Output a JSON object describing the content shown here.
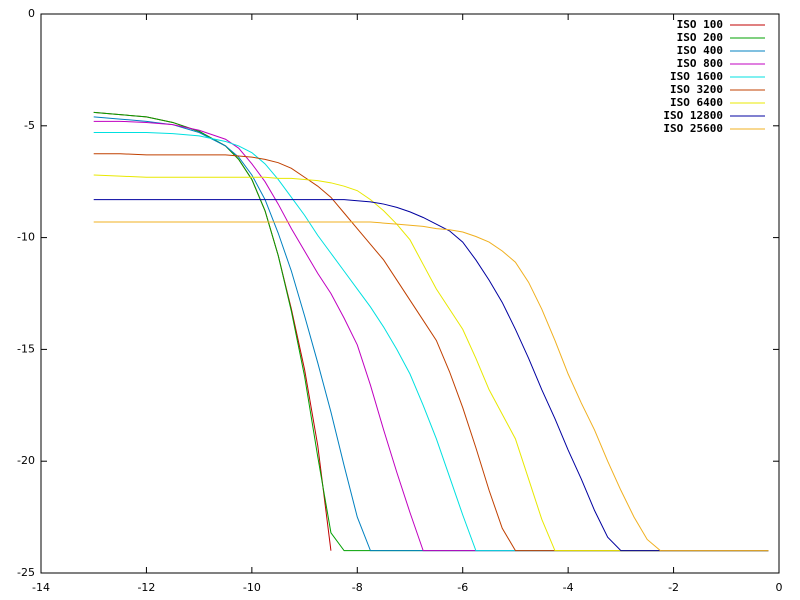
{
  "chart_data": {
    "type": "line",
    "x": [
      -13,
      -12.5,
      -12,
      -11.5,
      -11,
      -10.5,
      -10.25,
      -10,
      -9.75,
      -9.5,
      -9.25,
      -9,
      -8.75,
      -8.5,
      -8.25,
      -8,
      -7.75,
      -7.5,
      -7.25,
      -7,
      -6.75,
      -6.5,
      -6.25,
      -6,
      -5.75,
      -5.5,
      -5.25,
      -5,
      -4.75,
      -4.5,
      -4.25,
      -4,
      -3.75,
      -3.5,
      -3.25,
      -3,
      -2.75,
      -2.5,
      -2.25,
      -2,
      -1.5,
      -1,
      -0.5,
      -0.2
    ],
    "series": [
      {
        "name": "ISO 100",
        "color": "#c00000",
        "values": [
          -4.4,
          -4.5,
          -4.6,
          -4.85,
          -5.25,
          -5.9,
          -6.5,
          -7.4,
          -8.8,
          -10.8,
          -13.2,
          -15.9,
          -19.3,
          -24,
          null,
          null,
          null,
          null,
          null,
          null,
          null,
          null,
          null,
          null,
          null,
          null,
          null,
          null,
          null,
          null,
          null,
          null,
          null,
          null,
          null,
          null,
          null,
          null,
          null,
          null,
          null,
          null,
          null,
          null
        ]
      },
      {
        "name": "ISO 200",
        "color": "#00a000",
        "values": [
          -4.4,
          -4.5,
          -4.6,
          -4.85,
          -5.25,
          -5.9,
          -6.5,
          -7.4,
          -8.8,
          -10.8,
          -13.3,
          -16.2,
          -19.8,
          -23.2,
          -24,
          -24,
          -24,
          -24,
          -24,
          -24,
          -24,
          -24,
          -24,
          -24,
          -24,
          -24,
          -24,
          -24,
          -24,
          -24,
          -24,
          -24,
          -24,
          -24,
          -24,
          -24,
          -24,
          -24,
          -24,
          -24,
          -24,
          -24,
          -24,
          -24
        ]
      },
      {
        "name": "ISO 400",
        "color": "#0080c0",
        "values": [
          -4.6,
          -4.7,
          -4.8,
          -4.95,
          -5.3,
          -5.9,
          -6.4,
          -7.2,
          -8.3,
          -9.8,
          -11.5,
          -13.5,
          -15.6,
          -17.8,
          -20.2,
          -22.5,
          -24,
          -24,
          -24,
          -24,
          -24,
          -24,
          -24,
          -24,
          -24,
          -24,
          -24,
          -24,
          -24,
          -24,
          -24,
          -24,
          -24,
          -24,
          -24,
          -24,
          -24,
          -24,
          -24,
          -24,
          -24,
          -24,
          -24,
          -24
        ]
      },
      {
        "name": "ISO 800",
        "color": "#c000c0",
        "values": [
          -4.8,
          -4.8,
          -4.85,
          -4.95,
          -5.2,
          -5.6,
          -6.0,
          -6.7,
          -7.5,
          -8.5,
          -9.6,
          -10.6,
          -11.6,
          -12.5,
          -13.6,
          -14.8,
          -16.6,
          -18.6,
          -20.5,
          -22.3,
          -24,
          -24,
          -24,
          -24,
          -24,
          -24,
          -24,
          -24,
          -24,
          -24,
          -24,
          -24,
          -24,
          -24,
          -24,
          -24,
          -24,
          -24,
          -24,
          -24,
          -24,
          -24,
          -24,
          -24
        ]
      },
      {
        "name": "ISO 1600",
        "color": "#00e0e0",
        "values": [
          -5.3,
          -5.3,
          -5.3,
          -5.35,
          -5.45,
          -5.7,
          -5.9,
          -6.2,
          -6.7,
          -7.4,
          -8.2,
          -9.0,
          -9.9,
          -10.7,
          -11.5,
          -12.3,
          -13.1,
          -14.0,
          -15.0,
          -16.1,
          -17.5,
          -19.0,
          -20.7,
          -22.4,
          -24,
          -24,
          -24,
          -24,
          -24,
          -24,
          -24,
          -24,
          -24,
          -24,
          -24,
          -24,
          -24,
          -24,
          -24,
          -24,
          -24,
          -24,
          -24,
          -24
        ]
      },
      {
        "name": "ISO 3200",
        "color": "#c04000",
        "values": [
          -6.25,
          -6.25,
          -6.3,
          -6.3,
          -6.3,
          -6.3,
          -6.35,
          -6.4,
          -6.5,
          -6.65,
          -6.9,
          -7.3,
          -7.7,
          -8.2,
          -8.9,
          -9.6,
          -10.3,
          -11.0,
          -11.9,
          -12.8,
          -13.7,
          -14.6,
          -16.0,
          -17.6,
          -19.4,
          -21.3,
          -23.0,
          -24,
          -24,
          -24,
          -24,
          -24,
          -24,
          -24,
          -24,
          -24,
          -24,
          -24,
          -24,
          -24,
          -24,
          -24,
          -24,
          -24
        ]
      },
      {
        "name": "ISO 6400",
        "color": "#e8e800",
        "values": [
          -7.2,
          -7.25,
          -7.3,
          -7.3,
          -7.3,
          -7.3,
          -7.3,
          -7.3,
          -7.3,
          -7.35,
          -7.35,
          -7.4,
          -7.45,
          -7.55,
          -7.7,
          -7.9,
          -8.3,
          -8.8,
          -9.4,
          -10.1,
          -11.2,
          -12.3,
          -13.2,
          -14.1,
          -15.4,
          -16.8,
          -17.9,
          -19.0,
          -20.8,
          -22.6,
          -24,
          -24,
          -24,
          -24,
          -24,
          -24,
          -24,
          -24,
          -24,
          -24,
          -24,
          -24,
          -24,
          -24
        ]
      },
      {
        "name": "ISO 12800",
        "color": "#0000a0",
        "values": [
          -8.3,
          -8.3,
          -8.3,
          -8.3,
          -8.3,
          -8.3,
          -8.3,
          -8.3,
          -8.3,
          -8.3,
          -8.3,
          -8.3,
          -8.3,
          -8.3,
          -8.3,
          -8.35,
          -8.4,
          -8.5,
          -8.65,
          -8.85,
          -9.1,
          -9.4,
          -9.7,
          -10.2,
          -11.0,
          -11.9,
          -12.9,
          -14.1,
          -15.4,
          -16.8,
          -18.1,
          -19.5,
          -20.8,
          -22.2,
          -23.4,
          -24,
          -24,
          -24,
          -24,
          -24,
          -24,
          -24,
          -24,
          -24
        ]
      },
      {
        "name": "ISO 25600",
        "color": "#f0b020",
        "values": [
          -9.3,
          -9.3,
          -9.3,
          -9.3,
          -9.3,
          -9.3,
          -9.3,
          -9.3,
          -9.3,
          -9.3,
          -9.3,
          -9.3,
          -9.3,
          -9.3,
          -9.3,
          -9.3,
          -9.3,
          -9.35,
          -9.4,
          -9.45,
          -9.5,
          -9.6,
          -9.65,
          -9.75,
          -9.95,
          -10.2,
          -10.6,
          -11.1,
          -12.0,
          -13.2,
          -14.6,
          -16.1,
          -17.4,
          -18.6,
          -20.0,
          -21.3,
          -22.5,
          -23.5,
          -24,
          -24,
          -24,
          -24,
          -24,
          -24
        ]
      }
    ],
    "xlim": [
      -14,
      0
    ],
    "xticks": [
      -14,
      -12,
      -10,
      -8,
      -6,
      -4,
      -2,
      0
    ],
    "ylim": [
      -25,
      0
    ],
    "yticks": [
      -25,
      -20,
      -15,
      -10,
      -5,
      0
    ],
    "grid": false,
    "legend": "top-right"
  }
}
